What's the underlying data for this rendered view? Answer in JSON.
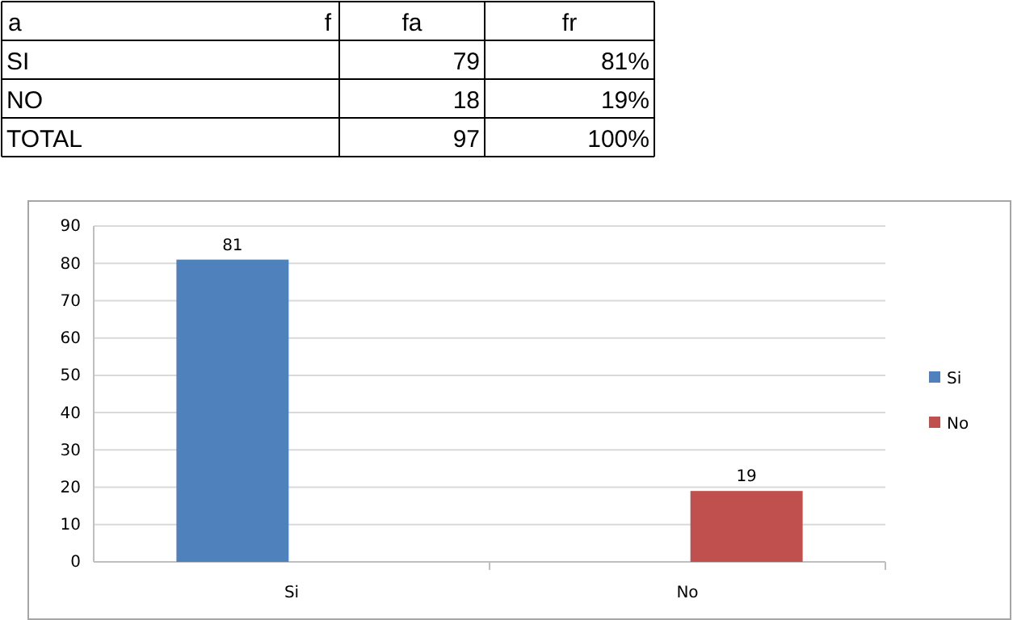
{
  "chart_data": [
    {
      "type": "other",
      "annotations": [
        "a",
        "f"
      ],
      "categories": [
        "SI",
        "NO",
        "TOTAL"
      ],
      "data_labels": true,
      "series": [
        {
          "name": "fa",
          "values": [
            79,
            18,
            97
          ]
        },
        {
          "name": "fr",
          "values": [
            81,
            19,
            100
          ],
          "value_labels": [
            "81%",
            "19%",
            "100%"
          ]
        }
      ]
    },
    {
      "type": "bar",
      "categories": [
        "Si",
        "No"
      ],
      "ylim": [
        0,
        90
      ],
      "yticks": [
        0,
        10,
        20,
        30,
        40,
        50,
        60,
        70,
        80,
        90
      ],
      "grid": "y",
      "legend": "right",
      "data_labels": true,
      "series": [
        {
          "name": "Si",
          "color": "#4f81bd",
          "values": [
            81,
            null
          ]
        },
        {
          "name": "No",
          "color": "#c0504d",
          "values": [
            null,
            19
          ]
        }
      ]
    }
  ]
}
